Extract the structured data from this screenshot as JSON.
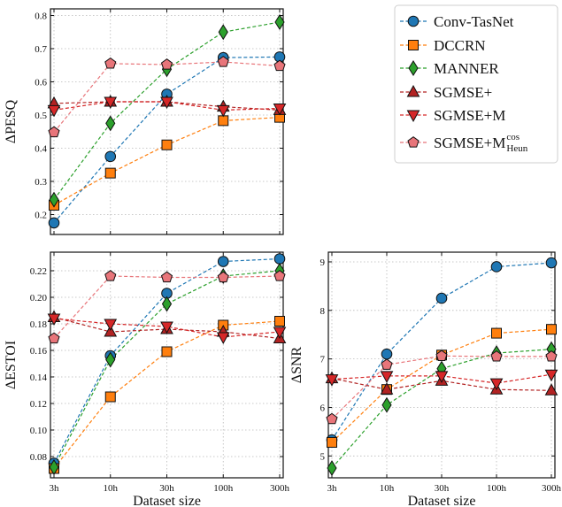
{
  "chart_data": [
    {
      "type": "line",
      "panel": "top-left",
      "ylabel": "ΔPESQ",
      "xlabel": "",
      "categories": [
        "3h",
        "10h",
        "30h",
        "100h",
        "300h"
      ],
      "show_xticklabels": false,
      "ylim": [
        0.14,
        0.82
      ],
      "yticks": [
        0.2,
        0.3,
        0.4,
        0.5,
        0.6,
        0.7,
        0.8
      ],
      "grid": true,
      "series": [
        {
          "name": "Conv-TasNet",
          "values": [
            0.175,
            0.375,
            0.563,
            0.673,
            0.675
          ]
        },
        {
          "name": "DCCRN",
          "values": [
            0.228,
            0.325,
            0.41,
            0.483,
            0.493
          ]
        },
        {
          "name": "MANNER",
          "values": [
            0.245,
            0.475,
            0.638,
            0.75,
            0.78
          ]
        },
        {
          "name": "SGMSE+",
          "values": [
            0.535,
            0.54,
            0.54,
            0.525,
            0.515
          ]
        },
        {
          "name": "SGMSE+M",
          "values": [
            0.515,
            0.54,
            0.54,
            0.515,
            0.52
          ]
        },
        {
          "name": "SGMSE+M_Heun^cos",
          "values": [
            0.448,
            0.655,
            0.652,
            0.66,
            0.648
          ]
        }
      ]
    },
    {
      "type": "line",
      "panel": "bottom-left",
      "ylabel": "ΔESTOI",
      "xlabel": "Dataset size",
      "categories": [
        "3h",
        "10h",
        "30h",
        "100h",
        "300h"
      ],
      "show_xticklabels": true,
      "ylim": [
        0.064,
        0.234
      ],
      "yticks": [
        0.08,
        0.1,
        0.12,
        0.14,
        0.16,
        0.18,
        0.2,
        0.22
      ],
      "ytick_labels": [
        "0.08",
        "0.10",
        "0.12",
        "0.14",
        "0.16",
        "0.18",
        "0.20",
        "0.22"
      ],
      "grid": true,
      "series": [
        {
          "name": "Conv-TasNet",
          "values": [
            0.075,
            0.156,
            0.203,
            0.227,
            0.229
          ]
        },
        {
          "name": "DCCRN",
          "values": [
            0.071,
            0.125,
            0.159,
            0.179,
            0.182
          ]
        },
        {
          "name": "MANNER",
          "values": [
            0.072,
            0.153,
            0.195,
            0.216,
            0.22
          ]
        },
        {
          "name": "SGMSE+",
          "values": [
            0.185,
            0.174,
            0.176,
            0.174,
            0.169
          ]
        },
        {
          "name": "SGMSE+M",
          "values": [
            0.184,
            0.18,
            0.178,
            0.17,
            0.174
          ]
        },
        {
          "name": "SGMSE+M_Heun^cos",
          "values": [
            0.169,
            0.216,
            0.215,
            0.215,
            0.216
          ]
        }
      ]
    },
    {
      "type": "line",
      "panel": "bottom-right",
      "ylabel": "ΔSNR",
      "xlabel": "Dataset size",
      "categories": [
        "3h",
        "10h",
        "30h",
        "100h",
        "300h"
      ],
      "show_xticklabels": true,
      "ylim": [
        4.55,
        9.2
      ],
      "yticks": [
        5,
        6,
        7,
        8,
        9
      ],
      "grid": true,
      "series": [
        {
          "name": "Conv-TasNet",
          "values": [
            5.33,
            7.1,
            8.25,
            8.9,
            8.98
          ]
        },
        {
          "name": "DCCRN",
          "values": [
            5.28,
            6.37,
            7.08,
            7.53,
            7.61
          ]
        },
        {
          "name": "MANNER",
          "values": [
            4.75,
            6.05,
            6.8,
            7.12,
            7.2
          ]
        },
        {
          "name": "SGMSE+",
          "values": [
            6.6,
            6.37,
            6.55,
            6.37,
            6.35
          ]
        },
        {
          "name": "SGMSE+M",
          "values": [
            6.58,
            6.65,
            6.65,
            6.5,
            6.68
          ]
        },
        {
          "name": "SGMSE+M_Heun^cos",
          "values": [
            5.76,
            6.88,
            7.06,
            7.05,
            7.05
          ]
        }
      ]
    }
  ],
  "legend": {
    "placement": "top-right",
    "items": [
      {
        "label": "Conv-TasNet",
        "marker": "circle",
        "color": "#1f77b4"
      },
      {
        "label": "DCCRN",
        "marker": "square",
        "color": "#ff7f0e"
      },
      {
        "label": "MANNER",
        "marker": "thin-diamond",
        "color": "#2ca02c"
      },
      {
        "label": "SGMSE+",
        "marker": "triangle-up",
        "color": "#b22222"
      },
      {
        "label": "SGMSE+M",
        "marker": "triangle-down",
        "color": "#d62728"
      },
      {
        "label": "SGMSE+M",
        "label_sup": "cos",
        "label_sub": "Heun",
        "marker": "pentagon",
        "color": "#e8757a"
      }
    ]
  },
  "colors": {
    "Conv-TasNet": "#1f77b4",
    "DCCRN": "#ff7f0e",
    "MANNER": "#2ca02c",
    "SGMSE+": "#b22222",
    "SGMSE+M": "#d62728",
    "SGMSE+M_Heun^cos": "#e8757a"
  }
}
